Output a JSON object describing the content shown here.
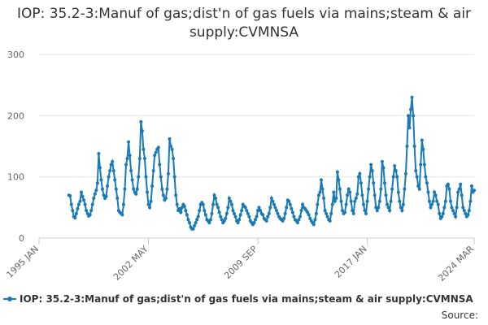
{
  "chart_data": {
    "type": "line",
    "title": "IOP: 35.2-3:Manuf of gas;dist'n of gas fuels via mains;steam & air supply:CVMNSA",
    "source_label": "Source:",
    "x": [
      "1995 JAN",
      "1995 FEB",
      "1995 MAR",
      "1995 APR",
      "1995 MAY",
      "1995 JUN",
      "1995 JUL",
      "1995 AUG",
      "1995 SEP",
      "1995 OCT",
      "1995 NOV",
      "1995 DEC",
      "1996 JAN",
      "1996 FEB",
      "1996 MAR",
      "1996 APR",
      "1996 MAY",
      "1996 JUN",
      "1996 JUL",
      "1996 AUG",
      "1996 SEP",
      "1996 OCT",
      "1996 NOV",
      "1996 DEC",
      "1997 JAN",
      "1997 FEB",
      "1997 MAR",
      "1997 APR",
      "1997 MAY",
      "1997 JUN",
      "1997 JUL",
      "1997 AUG",
      "1997 SEP",
      "1997 OCT",
      "1997 NOV",
      "1997 DEC",
      "1998 JAN",
      "1998 FEB",
      "1998 MAR",
      "1998 APR",
      "1998 MAY",
      "1998 JUN",
      "1998 JUL",
      "1998 AUG",
      "1998 SEP",
      "1998 OCT",
      "1998 NOV",
      "1998 DEC",
      "1999 JAN",
      "1999 FEB",
      "1999 MAR",
      "1999 APR",
      "1999 MAY",
      "1999 JUN",
      "1999 JUL",
      "1999 AUG",
      "1999 SEP",
      "1999 OCT",
      "1999 NOV",
      "1999 DEC",
      "2000 JAN",
      "2000 FEB",
      "2000 MAR",
      "2000 APR",
      "2000 MAY",
      "2000 JUN",
      "2000 JUL",
      "2000 AUG",
      "2000 SEP",
      "2000 OCT",
      "2000 NOV",
      "2000 DEC",
      "2001 JAN",
      "2001 FEB",
      "2001 MAR",
      "2001 APR",
      "2001 MAY",
      "2001 JUN",
      "2001 JUL",
      "2001 AUG",
      "2001 SEP",
      "2001 OCT",
      "2001 NOV",
      "2001 DEC",
      "2002 JAN",
      "2002 FEB",
      "2002 MAR",
      "2002 APR",
      "2002 MAY",
      "2002 JUN",
      "2002 JUL",
      "2002 AUG",
      "2002 SEP",
      "2002 OCT",
      "2002 NOV",
      "2002 DEC",
      "2003 JAN",
      "2003 FEB",
      "2003 MAR",
      "2003 APR",
      "2003 MAY",
      "2003 JUN",
      "2003 JUL",
      "2003 AUG",
      "2003 SEP",
      "2003 OCT",
      "2003 NOV",
      "2003 DEC",
      "2004 JAN",
      "2004 FEB",
      "2004 MAR",
      "2004 APR",
      "2004 MAY",
      "2004 JUN",
      "2004 JUL",
      "2004 AUG",
      "2004 SEP",
      "2004 OCT",
      "2004 NOV",
      "2004 DEC",
      "2005 JAN",
      "2005 FEB",
      "2005 MAR",
      "2005 APR",
      "2005 MAY",
      "2005 JUN",
      "2005 JUL",
      "2005 AUG",
      "2005 SEP",
      "2005 OCT",
      "2005 NOV",
      "2005 DEC",
      "2006 JAN",
      "2006 FEB",
      "2006 MAR",
      "2006 APR",
      "2006 MAY",
      "2006 JUN",
      "2006 JUL",
      "2006 AUG",
      "2006 SEP",
      "2006 OCT",
      "2006 NOV",
      "2006 DEC",
      "2007 JAN",
      "2007 FEB",
      "2007 MAR",
      "2007 APR",
      "2007 MAY",
      "2007 JUN",
      "2007 JUL",
      "2007 AUG",
      "2007 SEP",
      "2007 OCT",
      "2007 NOV",
      "2007 DEC",
      "2008 JAN",
      "2008 FEB",
      "2008 MAR",
      "2008 APR",
      "2008 MAY",
      "2008 JUN",
      "2008 JUL",
      "2008 AUG",
      "2008 SEP",
      "2008 OCT",
      "2008 NOV",
      "2008 DEC",
      "2009 JAN",
      "2009 FEB",
      "2009 MAR",
      "2009 APR",
      "2009 MAY",
      "2009 JUN",
      "2009 JUL",
      "2009 AUG",
      "2009 SEP",
      "2009 OCT",
      "2009 NOV",
      "2009 DEC",
      "2010 JAN",
      "2010 FEB",
      "2010 MAR",
      "2010 APR",
      "2010 MAY",
      "2010 JUN",
      "2010 JUL",
      "2010 AUG",
      "2010 SEP",
      "2010 OCT",
      "2010 NOV",
      "2010 DEC",
      "2011 JAN",
      "2011 FEB",
      "2011 MAR",
      "2011 APR",
      "2011 MAY",
      "2011 JUN",
      "2011 JUL",
      "2011 AUG",
      "2011 SEP",
      "2011 OCT",
      "2011 NOV",
      "2011 DEC",
      "2012 JAN",
      "2012 FEB",
      "2012 MAR",
      "2012 APR",
      "2012 MAY",
      "2012 JUN",
      "2012 JUL",
      "2012 AUG",
      "2012 SEP",
      "2012 OCT",
      "2012 NOV",
      "2012 DEC",
      "2013 JAN",
      "2013 FEB",
      "2013 MAR",
      "2013 APR",
      "2013 MAY",
      "2013 JUN",
      "2013 JUL",
      "2013 AUG",
      "2013 SEP",
      "2013 OCT",
      "2013 NOV",
      "2013 DEC",
      "2014 JAN",
      "2014 FEB",
      "2014 MAR",
      "2014 APR",
      "2014 MAY",
      "2014 JUN",
      "2014 JUL",
      "2014 AUG",
      "2014 SEP",
      "2014 OCT",
      "2014 NOV",
      "2014 DEC",
      "2015 JAN",
      "2015 FEB",
      "2015 MAR",
      "2015 APR",
      "2015 MAY",
      "2015 JUN",
      "2015 JUL",
      "2015 AUG",
      "2015 SEP",
      "2015 OCT",
      "2015 NOV",
      "2015 DEC",
      "2016 JAN",
      "2016 FEB",
      "2016 MAR",
      "2016 APR",
      "2016 MAY",
      "2016 JUN",
      "2016 JUL",
      "2016 AUG",
      "2016 SEP",
      "2016 OCT",
      "2016 NOV",
      "2016 DEC",
      "2017 JAN",
      "2017 FEB",
      "2017 MAR",
      "2017 APR",
      "2017 MAY",
      "2017 JUN",
      "2017 JUL",
      "2017 AUG",
      "2017 SEP",
      "2017 OCT",
      "2017 NOV",
      "2017 DEC",
      "2018 JAN",
      "2018 FEB",
      "2018 MAR",
      "2018 APR",
      "2018 MAY",
      "2018 JUN",
      "2018 JUL",
      "2018 AUG",
      "2018 SEP",
      "2018 OCT",
      "2018 NOV",
      "2018 DEC",
      "2019 JAN",
      "2019 FEB",
      "2019 MAR",
      "2019 APR",
      "2019 MAY",
      "2019 JUN",
      "2019 JUL",
      "2019 AUG",
      "2019 SEP",
      "2019 OCT",
      "2019 NOV",
      "2019 DEC",
      "2020 JAN",
      "2020 FEB",
      "2020 MAR",
      "2020 APR",
      "2020 MAY",
      "2020 JUN",
      "2020 JUL",
      "2020 AUG",
      "2020 SEP",
      "2020 OCT",
      "2020 NOV",
      "2020 DEC",
      "2021 JAN",
      "2021 FEB",
      "2021 MAR",
      "2021 APR",
      "2021 MAY",
      "2021 JUN",
      "2021 JUL",
      "2021 AUG",
      "2021 SEP",
      "2021 OCT",
      "2021 NOV",
      "2021 DEC",
      "2022 JAN",
      "2022 FEB",
      "2022 MAR",
      "2022 APR",
      "2022 MAY",
      "2022 JUN",
      "2022 JUL",
      "2022 AUG",
      "2022 SEP",
      "2022 OCT",
      "2022 NOV",
      "2022 DEC",
      "2023 JAN",
      "2023 FEB",
      "2023 MAR",
      "2023 APR",
      "2023 MAY",
      "2023 JUN",
      "2023 JUL",
      "2023 AUG",
      "2023 SEP",
      "2023 OCT",
      "2023 NOV",
      "2023 DEC",
      "2024 JAN",
      "2024 FEB",
      "2024 MAR"
    ],
    "xticks": [
      "1995 JAN",
      "2002 MAY",
      "2009 SEP",
      "2017 JAN",
      "2024 MAR"
    ],
    "ylim": [
      0,
      300
    ],
    "yticks": [
      0,
      100,
      200,
      300
    ],
    "grid": true,
    "series": [
      {
        "name": "IOP: 35.2-3:Manuf of gas;dist'n of gas fuels via mains;steam & air supply:CVMNSA",
        "color": "#1a7ab5",
        "values": [
          null,
          null,
          null,
          null,
          null,
          null,
          null,
          null,
          null,
          null,
          null,
          null,
          null,
          null,
          null,
          null,
          null,
          null,
          null,
          null,
          null,
          null,
          null,
          null,
          70,
          69,
          55,
          45,
          35,
          33,
          40,
          48,
          55,
          60,
          75,
          68,
          62,
          55,
          45,
          40,
          36,
          38,
          45,
          55,
          65,
          72,
          78,
          90,
          138,
          115,
          95,
          80,
          70,
          65,
          68,
          85,
          100,
          110,
          120,
          125,
          110,
          95,
          80,
          65,
          45,
          42,
          40,
          38,
          55,
          80,
          120,
          130,
          157,
          135,
          110,
          95,
          80,
          75,
          72,
          80,
          100,
          130,
          190,
          175,
          145,
          130,
          100,
          75,
          55,
          50,
          60,
          85,
          110,
          135,
          140,
          145,
          148,
          120,
          100,
          80,
          70,
          62,
          65,
          80,
          105,
          162,
          150,
          145,
          130,
          100,
          70,
          55,
          45,
          48,
          42,
          50,
          55,
          52,
          45,
          38,
          30,
          25,
          18,
          15,
          15,
          20,
          25,
          30,
          35,
          45,
          55,
          58,
          55,
          45,
          38,
          30,
          28,
          25,
          30,
          40,
          55,
          70,
          65,
          55,
          50,
          42,
          35,
          30,
          25,
          28,
          32,
          40,
          50,
          65,
          60,
          55,
          45,
          40,
          35,
          28,
          25,
          30,
          38,
          45,
          55,
          52,
          50,
          45,
          40,
          35,
          28,
          25,
          22,
          25,
          30,
          35,
          45,
          50,
          45,
          40,
          38,
          32,
          30,
          28,
          35,
          40,
          50,
          65,
          60,
          55,
          50,
          45,
          40,
          35,
          32,
          30,
          28,
          32,
          40,
          50,
          62,
          60,
          55,
          48,
          42,
          35,
          30,
          28,
          25,
          30,
          35,
          45,
          55,
          50,
          48,
          45,
          42,
          38,
          32,
          28,
          25,
          22,
          30,
          40,
          55,
          70,
          75,
          95,
          80,
          65,
          45,
          40,
          35,
          30,
          28,
          40,
          55,
          75,
          60,
          65,
          108,
          95,
          80,
          60,
          45,
          40,
          42,
          55,
          70,
          80,
          75,
          60,
          45,
          40,
          60,
          65,
          72,
          100,
          105,
          90,
          70,
          55,
          45,
          40,
          60,
          80,
          100,
          120,
          110,
          90,
          70,
          50,
          45,
          50,
          60,
          80,
          125,
          115,
          90,
          70,
          55,
          50,
          45,
          60,
          80,
          100,
          118,
          110,
          100,
          75,
          60,
          50,
          45,
          55,
          80,
          105,
          150,
          200,
          180,
          210,
          230,
          200,
          150,
          110,
          100,
          85,
          80,
          120,
          160,
          145,
          120,
          100,
          90,
          75,
          60,
          50,
          55,
          60,
          75,
          70,
          60,
          55,
          40,
          32,
          35,
          40,
          50,
          60,
          85,
          88,
          80,
          60,
          50,
          45,
          40,
          35,
          50,
          75,
          80,
          88,
          70,
          50,
          45,
          40,
          35,
          38,
          45,
          60,
          85,
          75,
          78
        ]
      }
    ]
  }
}
